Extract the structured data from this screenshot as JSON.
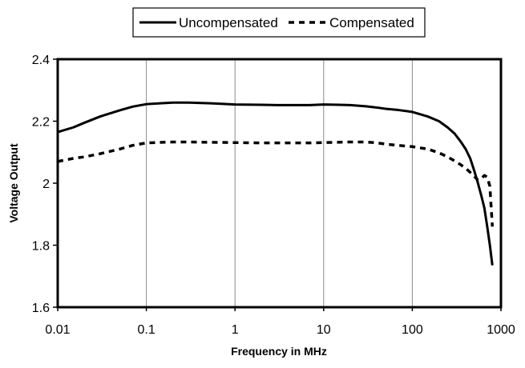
{
  "chart_data": {
    "type": "line",
    "title": "",
    "xlabel": "Frequency in MHz",
    "ylabel": "Voltage Output",
    "xscale": "log",
    "xlim": [
      0.01,
      1000
    ],
    "ylim": [
      1.6,
      2.4
    ],
    "xticks": [
      0.01,
      0.1,
      1,
      10,
      100,
      1000
    ],
    "xtick_labels": [
      "0.01",
      "0.1",
      "1",
      "10",
      "100",
      "1000"
    ],
    "yticks": [
      1.6,
      1.8,
      2.0,
      2.2,
      2.4
    ],
    "ytick_labels": [
      "1.6",
      "1.8",
      "2",
      "2.2",
      "2.4"
    ],
    "grid": "vertical",
    "legend_position": "top-center",
    "series": [
      {
        "name": "Uncompensated",
        "style": "solid",
        "color": "#000000",
        "x": [
          0.01,
          0.015,
          0.02,
          0.03,
          0.05,
          0.07,
          0.1,
          0.15,
          0.2,
          0.3,
          0.5,
          0.7,
          1,
          2,
          3,
          5,
          7,
          10,
          15,
          20,
          30,
          40,
          50,
          70,
          100,
          150,
          200,
          250,
          300,
          350,
          400,
          450,
          500,
          550,
          600,
          650,
          700,
          750,
          800
        ],
        "y": [
          2.165,
          2.18,
          2.195,
          2.215,
          2.235,
          2.247,
          2.255,
          2.258,
          2.26,
          2.26,
          2.258,
          2.256,
          2.254,
          2.253,
          2.252,
          2.252,
          2.252,
          2.254,
          2.253,
          2.252,
          2.248,
          2.244,
          2.24,
          2.236,
          2.23,
          2.215,
          2.2,
          2.18,
          2.16,
          2.135,
          2.11,
          2.08,
          2.04,
          2.0,
          1.96,
          1.92,
          1.86,
          1.8,
          1.735
        ]
      },
      {
        "name": "Compensated",
        "style": "dashed",
        "color": "#000000",
        "x": [
          0.01,
          0.015,
          0.02,
          0.03,
          0.05,
          0.07,
          0.1,
          0.2,
          0.3,
          0.5,
          1,
          2,
          3,
          5,
          7,
          10,
          20,
          30,
          40,
          50,
          70,
          100,
          150,
          200,
          250,
          300,
          350,
          400,
          450,
          500,
          550,
          600,
          650,
          700,
          750,
          800
        ],
        "y": [
          2.07,
          2.08,
          2.085,
          2.095,
          2.11,
          2.122,
          2.13,
          2.133,
          2.133,
          2.132,
          2.131,
          2.13,
          2.13,
          2.13,
          2.13,
          2.131,
          2.133,
          2.133,
          2.13,
          2.126,
          2.122,
          2.118,
          2.11,
          2.098,
          2.085,
          2.072,
          2.06,
          2.048,
          2.035,
          2.022,
          2.01,
          2.015,
          2.025,
          2.02,
          1.99,
          1.86
        ]
      }
    ]
  }
}
